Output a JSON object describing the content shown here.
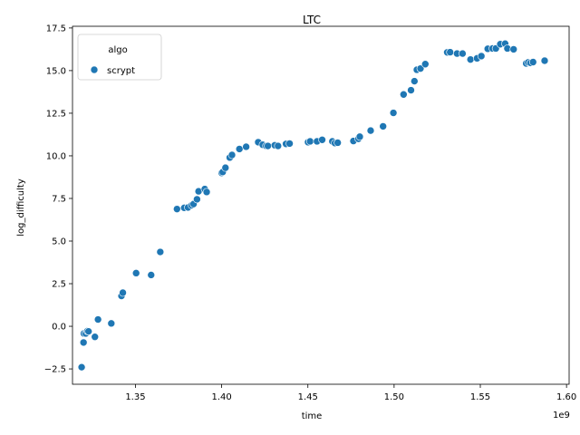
{
  "chart_data": {
    "type": "scatter",
    "title": "LTC",
    "xlabel": "time",
    "ylabel": "log_difficulty",
    "x_offset_label": "1e9",
    "xlim": [
      1.3135,
      1.6015
    ],
    "ylim": [
      -3.4,
      17.6
    ],
    "xticks": [
      1.35,
      1.4,
      1.45,
      1.5,
      1.55,
      1.6
    ],
    "xtick_labels": [
      "1.35",
      "1.40",
      "1.45",
      "1.50",
      "1.55",
      "1.60"
    ],
    "yticks": [
      -2.5,
      0.0,
      2.5,
      5.0,
      7.5,
      10.0,
      12.5,
      15.0,
      17.5
    ],
    "ytick_labels": [
      "−2.5",
      "0.0",
      "2.5",
      "5.0",
      "7.5",
      "10.0",
      "12.5",
      "15.0",
      "17.5"
    ],
    "grid": false,
    "legend": {
      "title": "algo",
      "placement": "top-left"
    },
    "series": [
      {
        "name": "scrypt",
        "color": "#1f77b4",
        "x": [
          1.3188,
          1.3199,
          1.3201,
          1.3212,
          1.3221,
          1.3228,
          1.3265,
          1.3283,
          1.336,
          1.3419,
          1.3427,
          1.3504,
          1.3591,
          1.3644,
          1.3741,
          1.3783,
          1.3805,
          1.3826,
          1.3837,
          1.3857,
          1.3866,
          1.3902,
          1.3913,
          1.4,
          1.4006,
          1.4022,
          1.4047,
          1.406,
          1.4103,
          1.4142,
          1.4212,
          1.4238,
          1.4258,
          1.4268,
          1.4308,
          1.4327,
          1.4373,
          1.4394,
          1.4501,
          1.4513,
          1.4553,
          1.4583,
          1.4642,
          1.4657,
          1.4673,
          1.4764,
          1.4793,
          1.4801,
          1.4864,
          1.4936,
          1.4996,
          1.5055,
          1.5098,
          1.5118,
          1.5132,
          1.5153,
          1.5181,
          1.5308,
          1.5325,
          1.5365,
          1.5397,
          1.5443,
          1.5481,
          1.5506,
          1.5543,
          1.5571,
          1.559,
          1.5616,
          1.5644,
          1.5657,
          1.5693,
          1.5766,
          1.5778,
          1.5791,
          1.5806,
          1.5873
        ],
        "y": [
          -2.4,
          -0.95,
          -0.42,
          -0.42,
          -0.28,
          -0.3,
          -0.62,
          0.4,
          0.17,
          1.78,
          1.97,
          3.12,
          3.01,
          4.36,
          6.88,
          6.95,
          6.97,
          7.1,
          7.17,
          7.45,
          7.92,
          8.05,
          7.88,
          9.0,
          9.05,
          9.3,
          9.9,
          10.05,
          10.4,
          10.53,
          10.8,
          10.65,
          10.58,
          10.58,
          10.62,
          10.58,
          10.7,
          10.72,
          10.8,
          10.85,
          10.85,
          10.94,
          10.85,
          10.75,
          10.77,
          10.87,
          11.0,
          11.12,
          11.48,
          11.73,
          12.52,
          13.6,
          13.85,
          14.38,
          15.05,
          15.12,
          15.38,
          16.07,
          16.08,
          16.0,
          16.0,
          15.65,
          15.72,
          15.85,
          16.28,
          16.3,
          16.3,
          16.55,
          16.58,
          16.3,
          16.25,
          15.42,
          15.48,
          15.45,
          15.5,
          15.58
        ]
      }
    ]
  }
}
